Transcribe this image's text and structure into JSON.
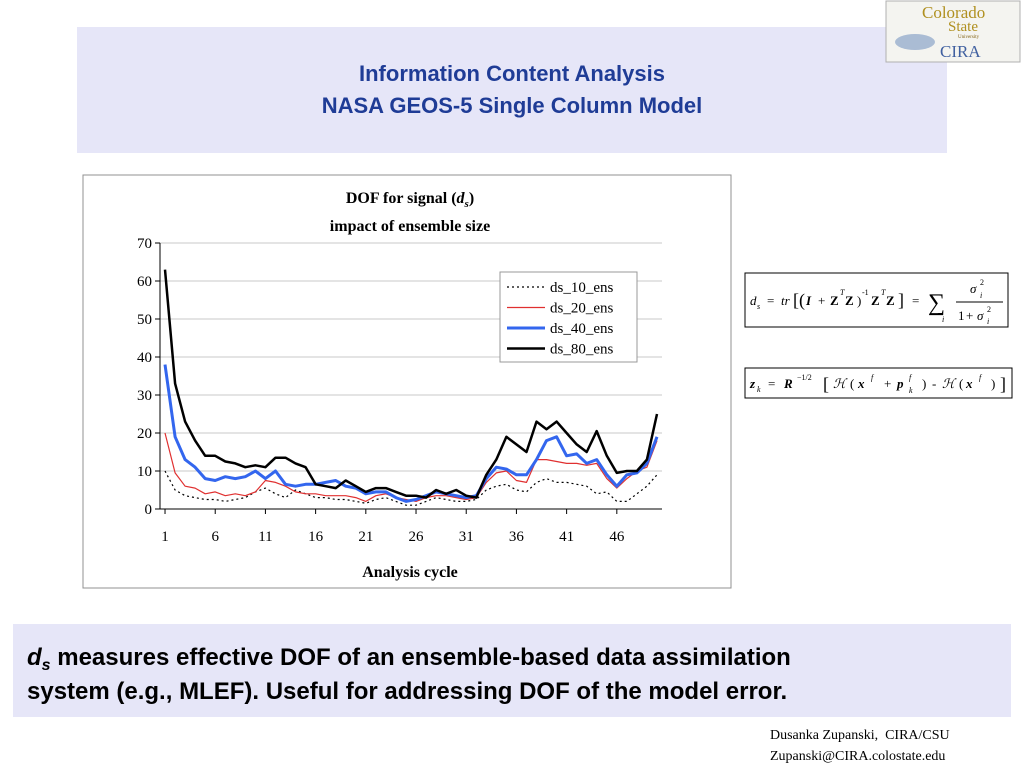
{
  "header": {
    "title_line1": "Information Content Analysis",
    "title_line2": "NASA GEOS-5 Single Column Model"
  },
  "logo": {
    "line1": "Colorado",
    "line2": "State",
    "line3": "University",
    "line4": "CIRA"
  },
  "chart_data": {
    "type": "line",
    "title": "DOF for signal (",
    "title_symbol": "d",
    "title_subscript": "s",
    "title_end": ")",
    "subtitle": "impact of ensemble size",
    "x_label": "Analysis cycle",
    "x": [
      1,
      2,
      3,
      4,
      5,
      6,
      7,
      8,
      9,
      10,
      11,
      12,
      13,
      14,
      15,
      16,
      17,
      18,
      19,
      20,
      21,
      22,
      23,
      24,
      25,
      26,
      27,
      28,
      29,
      30,
      31,
      32,
      33,
      34,
      35,
      36,
      37,
      38,
      39,
      40,
      41,
      42,
      43,
      44,
      45,
      46,
      47,
      48,
      49,
      50
    ],
    "xlim": [
      0.5,
      50.5
    ],
    "xticks": [
      1,
      6,
      11,
      16,
      21,
      26,
      31,
      36,
      41,
      46
    ],
    "ylim": [
      0,
      70
    ],
    "yticks": [
      0,
      10,
      20,
      30,
      40,
      50,
      60,
      70
    ],
    "grid": true,
    "legend": "upper right",
    "series": [
      {
        "name": "ds_10_ens",
        "color": "#000000",
        "style": "dotted",
        "width": 1.2,
        "values": [
          10,
          5,
          3.5,
          3,
          2.5,
          2.5,
          2,
          2.5,
          3,
          4.5,
          5.5,
          4,
          3,
          5,
          4,
          3,
          3,
          2.5,
          2.5,
          2,
          1.5,
          2.5,
          3,
          2,
          1,
          1,
          2,
          3,
          2.5,
          2,
          2,
          2.5,
          5,
          6,
          6.5,
          5,
          4.5,
          7,
          8,
          7,
          7,
          6.5,
          6,
          4,
          4.5,
          2,
          2,
          4,
          6,
          9
        ]
      },
      {
        "name": "ds_20_ens",
        "color": "#e03030",
        "style": "solid",
        "width": 1.2,
        "values": [
          20,
          9.5,
          6,
          5.5,
          4,
          4.5,
          3.5,
          4,
          3.5,
          4.5,
          7.5,
          7,
          6,
          4.5,
          4,
          4,
          3.5,
          3.5,
          3.5,
          3,
          2,
          3.5,
          4,
          3,
          2.5,
          2,
          3,
          3.5,
          3.5,
          3,
          2.5,
          3,
          7,
          9.5,
          10,
          7.5,
          7,
          13,
          13,
          12.5,
          12,
          12,
          11.5,
          12,
          8,
          5.5,
          8,
          10,
          11,
          18
        ]
      },
      {
        "name": "ds_40_ens",
        "color": "#3366ee",
        "style": "solid",
        "width": 3,
        "values": [
          38,
          19,
          13,
          11,
          8,
          7.5,
          8.5,
          8,
          8.5,
          10,
          8,
          10,
          6.5,
          6,
          6.5,
          6.5,
          7,
          7.5,
          6,
          5.5,
          4,
          4.5,
          4.5,
          3,
          2,
          2.5,
          3.5,
          4.5,
          4,
          3.5,
          3,
          3.5,
          8,
          11,
          10.5,
          9,
          9,
          13,
          18,
          19,
          14,
          14.5,
          12,
          13,
          9,
          6,
          9,
          9.5,
          12,
          19
        ]
      },
      {
        "name": "ds_80_ens",
        "color": "#000000",
        "style": "solid",
        "width": 2.5,
        "values": [
          63,
          33,
          23,
          18,
          14,
          14,
          12.5,
          12,
          11,
          11.5,
          11,
          13.5,
          13.5,
          12,
          11,
          6.5,
          6,
          5.5,
          7.5,
          6,
          4.5,
          5.5,
          5.5,
          4.5,
          3.5,
          3.5,
          3,
          5,
          4,
          5,
          3.5,
          3,
          9,
          13,
          19,
          17,
          15,
          23,
          21,
          23,
          20,
          17,
          15,
          20.5,
          14,
          9.5,
          10,
          10,
          13,
          25
        ]
      }
    ]
  },
  "equations": [
    [
      "d",
      "s",
      "=",
      "tr",
      "[(",
      "I",
      "+",
      "Z",
      "T",
      "Z",
      ")",
      "-1",
      "Z",
      "T",
      "Z",
      "]",
      "=",
      "∑",
      "i",
      "σ",
      "2",
      "i",
      "1",
      "+",
      "σ",
      "2",
      "i"
    ],
    [
      "z",
      "k",
      "=",
      "R",
      "−1/2",
      "[",
      "ℋ",
      "(",
      "x",
      "f",
      "+",
      "p",
      "f",
      "k",
      ")",
      "-",
      "ℋ",
      "(",
      "x",
      "f",
      ")",
      "]"
    ]
  ],
  "caption": {
    "symbol": "d",
    "subscript": "s",
    "line1": " measures effective DOF of an ensemble-based data assimilation",
    "line2": "system (e.g., MLEF). Useful for addressing DOF of the model error."
  },
  "footer": {
    "line1": "Dusanka Zupanski,  CIRA/CSU",
    "line2": "Zupanski@CIRA.colostate.edu"
  }
}
